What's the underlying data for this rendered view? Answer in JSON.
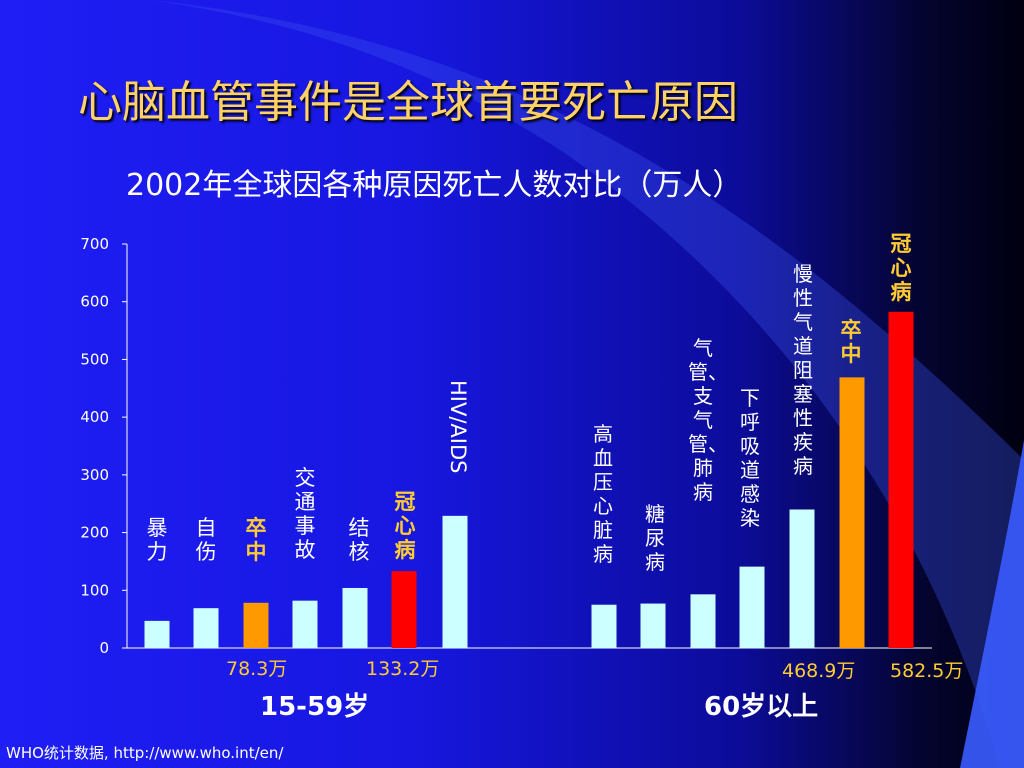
{
  "title": "心脑血管事件是全球首要死亡原因",
  "subtitle": "2002年全球因各种原因死亡人数对比（万人）",
  "footer": "WHO统计数据, http://www.who.int/en/",
  "colors": {
    "normal": "#ccffff",
    "stroke": "#ff9900",
    "chd": "#ff0000",
    "highlight_text": "#ffcc33"
  },
  "chart_data": {
    "type": "bar",
    "ylim": [
      0,
      700
    ],
    "yticks": [
      "0",
      "100",
      "200",
      "300",
      "400",
      "500",
      "600",
      "700"
    ],
    "grid": false,
    "groups": [
      {
        "name": "15-59岁",
        "bars": [
          {
            "label": "暴力",
            "value": 47,
            "color": "normal"
          },
          {
            "label": "自伤",
            "value": 69,
            "color": "normal"
          },
          {
            "label": "卒中",
            "value": 78.3,
            "color": "stroke"
          },
          {
            "label": "交通事故",
            "value": 82,
            "color": "normal"
          },
          {
            "label": "结核",
            "value": 104,
            "color": "normal"
          },
          {
            "label": "冠心病",
            "value": 133.2,
            "color": "chd"
          },
          {
            "label": "HIV/AIDS",
            "value": 229,
            "color": "normal"
          }
        ]
      },
      {
        "name": "60岁以上",
        "bars": [
          {
            "label": "高血压心脏病",
            "value": 75,
            "color": "normal"
          },
          {
            "label": "糖尿病",
            "value": 77,
            "color": "normal"
          },
          {
            "label": "气管、支气管、肺病",
            "value": 93,
            "color": "normal"
          },
          {
            "label": "下呼吸道感染",
            "value": 141,
            "color": "normal"
          },
          {
            "label": "慢性气道阻塞性疾病",
            "value": 240,
            "color": "normal"
          },
          {
            "label": "卒中",
            "value": 468.9,
            "color": "stroke"
          },
          {
            "label": "冠心病",
            "value": 582.5,
            "color": "chd"
          }
        ]
      }
    ],
    "annotations": [
      "78.3万",
      "133.2万",
      "468.9万",
      "582.5万"
    ]
  }
}
